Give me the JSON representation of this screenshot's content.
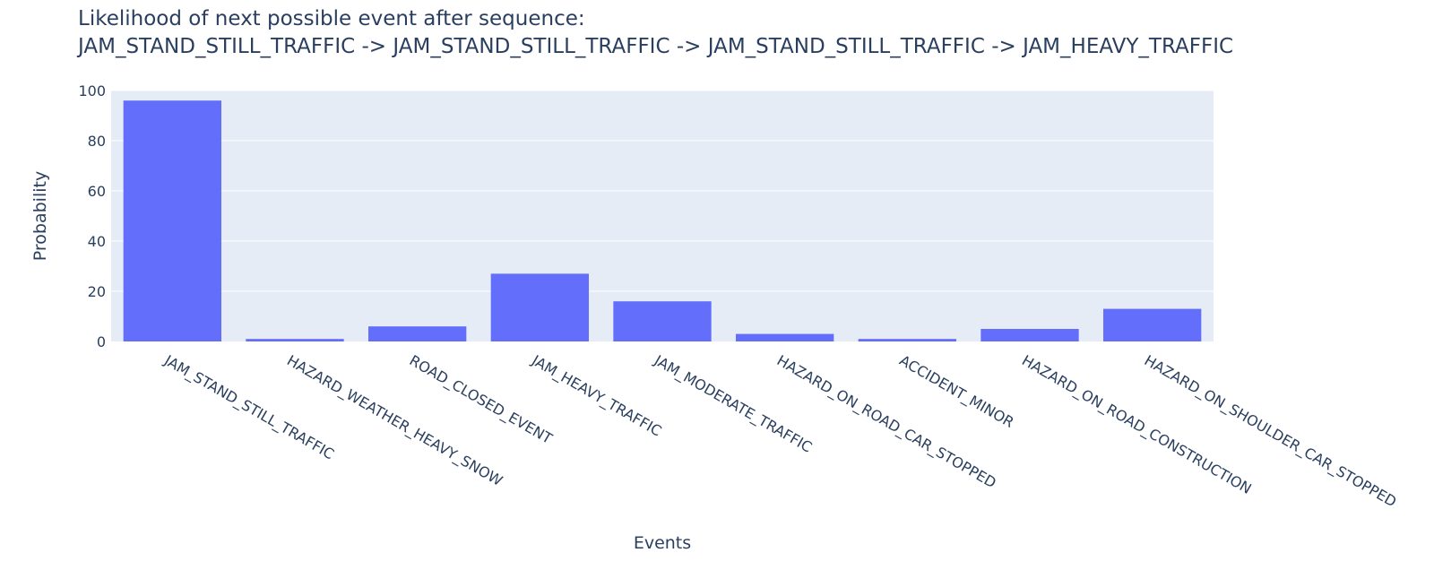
{
  "chart_data": {
    "type": "bar",
    "title_line1": "Likelihood of next possible event after sequence:",
    "title_line2": "JAM_STAND_STILL_TRAFFIC -> JAM_STAND_STILL_TRAFFIC -> JAM_STAND_STILL_TRAFFIC -> JAM_HEAVY_TRAFFIC",
    "xlabel": "Events",
    "ylabel": "Probability",
    "categories": [
      "JAM_STAND_STILL_TRAFFIC",
      "HAZARD_WEATHER_HEAVY_SNOW",
      "ROAD_CLOSED_EVENT",
      "JAM_HEAVY_TRAFFIC",
      "JAM_MODERATE_TRAFFIC",
      "HAZARD_ON_ROAD_CAR_STOPPED",
      "ACCIDENT_MINOR",
      "HAZARD_ON_ROAD_CONSTRUCTION",
      "HAZARD_ON_SHOULDER_CAR_STOPPED"
    ],
    "values": [
      96,
      1,
      6,
      27,
      16,
      3,
      1,
      5,
      13
    ],
    "ylim": [
      0,
      100
    ],
    "yticks": [
      0,
      20,
      40,
      60,
      80,
      100
    ],
    "grid": true,
    "colors": {
      "bar": "#636efa",
      "plot_bg": "#e5ecf6",
      "text": "#2a3f5f",
      "grid": "#ffffff"
    }
  }
}
